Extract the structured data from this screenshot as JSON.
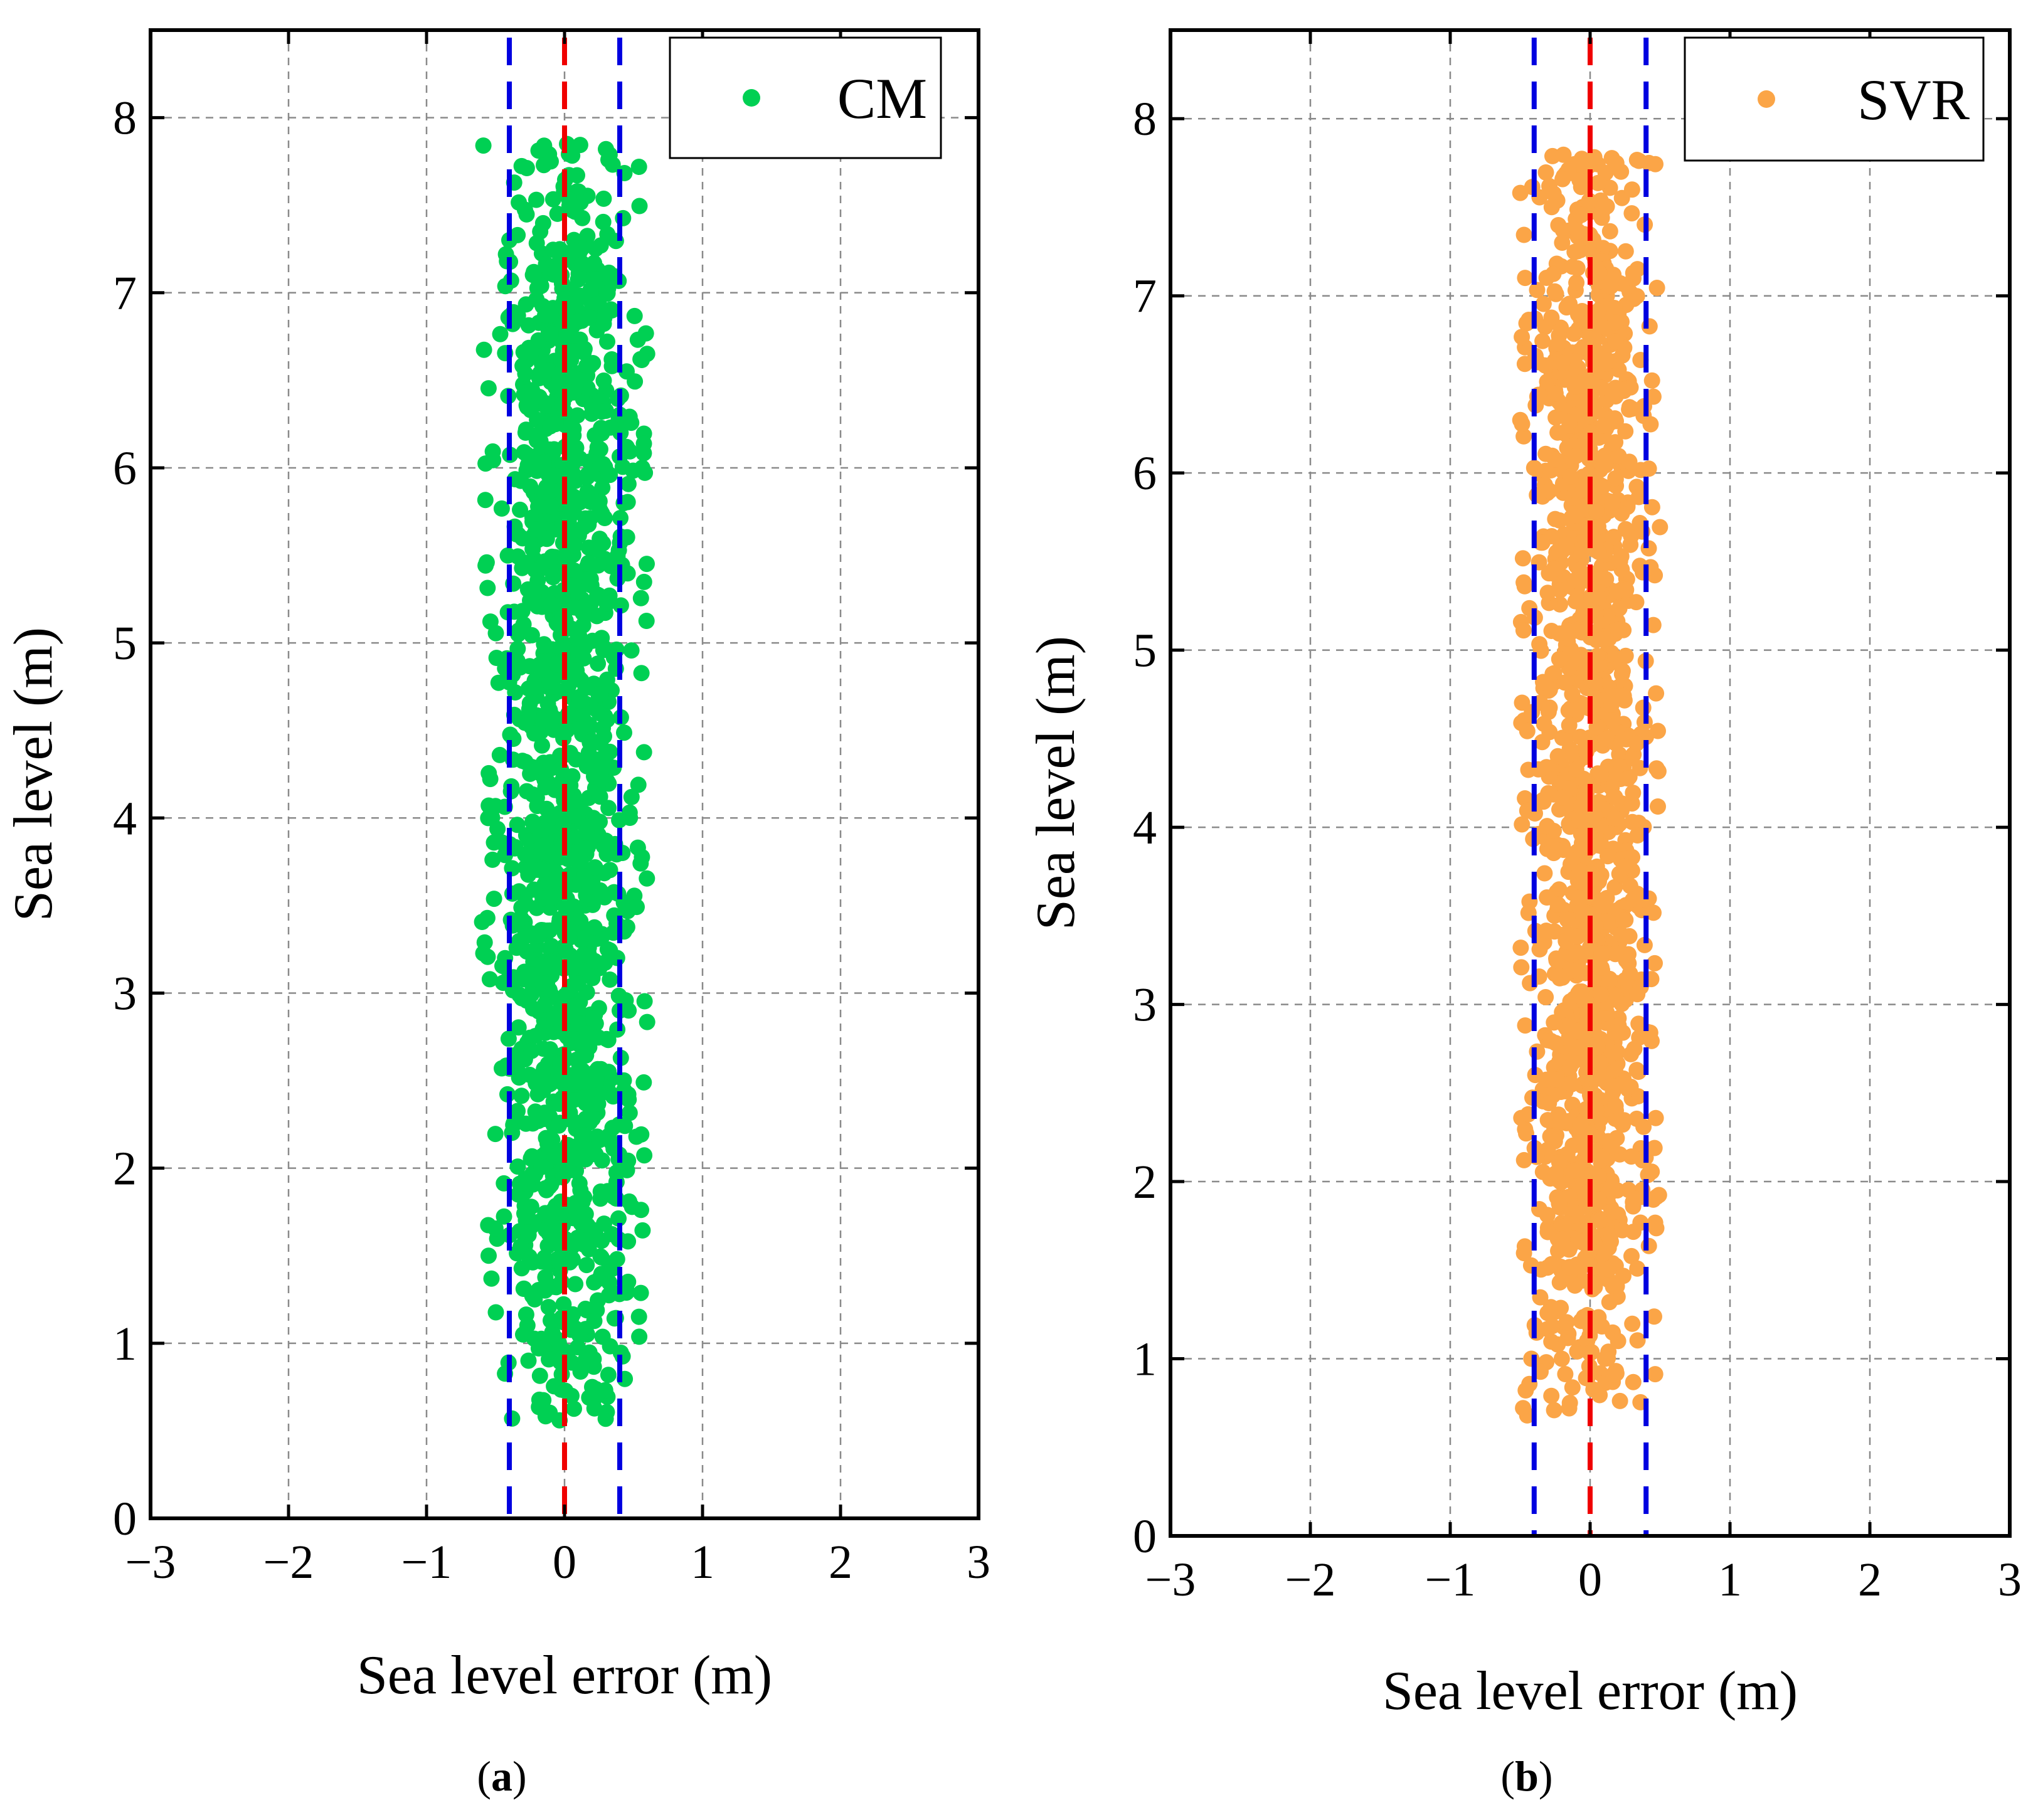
{
  "figure": {
    "panel_a_label": "a",
    "panel_b_label": "b"
  },
  "chart_data": [
    {
      "type": "scatter",
      "panel": "a",
      "title": "",
      "xlabel": "Sea level error (m)",
      "ylabel": "Sea level (m)",
      "xlim": [
        -3,
        3
      ],
      "ylim": [
        0,
        8.5
      ],
      "xticks": [
        -3,
        -2,
        -1,
        0,
        1,
        2,
        3
      ],
      "xtick_labels": [
        "−3",
        "−2",
        "−1",
        "0",
        "1",
        "2",
        "3"
      ],
      "yticks": [
        0,
        1,
        2,
        3,
        4,
        5,
        6,
        7,
        8
      ],
      "ytick_labels": [
        "0",
        "1",
        "2",
        "3",
        "4",
        "5",
        "6",
        "7",
        "8"
      ],
      "grid": true,
      "legend": {
        "position": "top-right",
        "entries": [
          "CM"
        ]
      },
      "series": [
        {
          "name": "CM",
          "color": "#00D053",
          "point_count": 1500,
          "x_range": [
            -0.6,
            0.6
          ],
          "y_range": [
            0.55,
            7.85
          ],
          "note": "Dense cloud of points; dense between y=2 and y=7, sparser below y=1.5",
          "sample_points": [
            [
              -0.38,
              0.57
            ],
            [
              0.05,
              0.7
            ],
            [
              0.2,
              0.75
            ],
            [
              -0.3,
              1.05
            ],
            [
              0.45,
              1.3
            ],
            [
              -0.55,
              1.5
            ],
            [
              0.4,
              2.9
            ],
            [
              0.3,
              7.82
            ],
            [
              -0.1,
              7.75
            ],
            [
              -0.4,
              7.3
            ]
          ]
        }
      ],
      "reference_lines": [
        {
          "x": -0.4,
          "color": "#0000E0",
          "style": "dashed"
        },
        {
          "x": 0,
          "color": "#F00000",
          "style": "dashed"
        },
        {
          "x": 0.4,
          "color": "#0000E0",
          "style": "dashed"
        }
      ]
    },
    {
      "type": "scatter",
      "panel": "b",
      "title": "",
      "xlabel": "Sea level error (m)",
      "ylabel": "Sea level (m)",
      "xlim": [
        -3,
        3
      ],
      "ylim": [
        0,
        8.5
      ],
      "xticks": [
        -3,
        -2,
        -1,
        0,
        1,
        2,
        3
      ],
      "xtick_labels": [
        "−3",
        "−2",
        "−1",
        "0",
        "1",
        "2",
        "3"
      ],
      "yticks": [
        0,
        1,
        2,
        3,
        4,
        5,
        6,
        7,
        8
      ],
      "ytick_labels": [
        "0",
        "1",
        "2",
        "3",
        "4",
        "5",
        "6",
        "7",
        "8"
      ],
      "grid": true,
      "legend": {
        "position": "top-right",
        "entries": [
          "SVR"
        ]
      },
      "series": [
        {
          "name": "SVR",
          "color": "#FBA547",
          "point_count": 1500,
          "x_range": [
            -0.5,
            0.5
          ],
          "y_range": [
            0.65,
            7.8
          ],
          "note": "Dense cloud of points; dense between y=2 and y=7, sparser below y=1.5",
          "sample_points": [
            [
              -0.45,
              0.68
            ],
            [
              -0.15,
              0.72
            ],
            [
              0.2,
              1.1
            ],
            [
              -0.42,
              1.0
            ],
            [
              0.42,
              7.75
            ],
            [
              0.3,
              7.6
            ],
            [
              -0.2,
              7.3
            ]
          ]
        }
      ],
      "reference_lines": [
        {
          "x": -0.4,
          "color": "#0000E0",
          "style": "dashed"
        },
        {
          "x": 0,
          "color": "#F00000",
          "style": "dashed"
        },
        {
          "x": 0.4,
          "color": "#0000E0",
          "style": "dashed"
        }
      ]
    }
  ]
}
